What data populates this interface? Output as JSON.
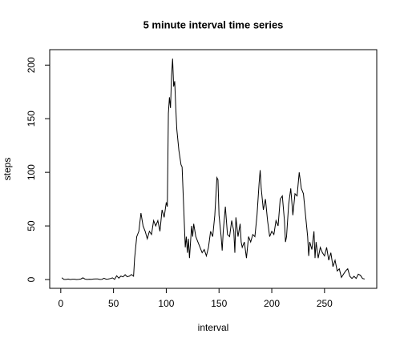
{
  "chart_data": {
    "type": "line",
    "title": "5 minute interval time series",
    "x_label": "interval",
    "y_label": "steps",
    "x": [
      1,
      3,
      5,
      7,
      9,
      11,
      13,
      15,
      17,
      19,
      21,
      23,
      25,
      27,
      29,
      31,
      33,
      35,
      37,
      39,
      41,
      43,
      45,
      47,
      49,
      51,
      53,
      55,
      57,
      59,
      61,
      63,
      65,
      67,
      69,
      70,
      72,
      74,
      76,
      78,
      80,
      82,
      84,
      86,
      88,
      90,
      92,
      94,
      96,
      98,
      100,
      101,
      102,
      103,
      104,
      105,
      106,
      107,
      108,
      109,
      110,
      112,
      114,
      115,
      116,
      118,
      119,
      120,
      121,
      122,
      123,
      124,
      125,
      126,
      128,
      130,
      132,
      134,
      136,
      138,
      140,
      142,
      144,
      146,
      148,
      149,
      150,
      152,
      153,
      154,
      156,
      158,
      160,
      162,
      164,
      165,
      166,
      168,
      170,
      171,
      172,
      174,
      176,
      177,
      178,
      180,
      182,
      184,
      186,
      188,
      189,
      190,
      192,
      194,
      196,
      198,
      200,
      202,
      204,
      206,
      208,
      210,
      212,
      213,
      214,
      216,
      218,
      220,
      222,
      224,
      226,
      228,
      230,
      232,
      234,
      235,
      236,
      238,
      240,
      241,
      242,
      244,
      246,
      248,
      250,
      252,
      254,
      256,
      258,
      260,
      262,
      264,
      266,
      268,
      270,
      272,
      274,
      276,
      278,
      280,
      282,
      284,
      286,
      288
    ],
    "series": [
      {
        "name": "steps",
        "color": "#000000",
        "values": [
          1.7,
          0.1,
          0.1,
          0.5,
          0,
          0.3,
          0.3,
          0,
          0.2,
          0.5,
          1.6,
          0.4,
          0.1,
          0.3,
          0.2,
          0.5,
          0.6,
          0.6,
          0.1,
          0.2,
          1.2,
          0.3,
          0.5,
          0.9,
          1.6,
          0.2,
          3.5,
          1.3,
          3.2,
          2.5,
          4.5,
          2.6,
          3.2,
          4.7,
          3.1,
          20,
          40,
          45,
          62,
          50,
          45,
          38,
          45,
          42,
          55,
          50,
          55,
          45,
          65,
          58,
          72,
          68,
          155,
          170,
          160,
          190,
          206,
          180,
          185,
          160,
          140,
          120,
          107,
          105,
          80,
          30,
          40,
          25,
          38,
          20,
          35,
          50,
          40,
          52,
          40,
          35,
          30,
          25,
          28,
          22,
          30,
          45,
          40,
          60,
          95,
          93,
          60,
          40,
          27,
          45,
          68,
          42,
          40,
          55,
          45,
          25,
          58,
          40,
          52,
          35,
          30,
          35,
          20,
          30,
          40,
          35,
          42,
          40,
          60,
          90,
          102,
          85,
          65,
          75,
          55,
          40,
          45,
          42,
          55,
          50,
          75,
          78,
          55,
          35,
          40,
          70,
          85,
          60,
          80,
          78,
          100,
          85,
          80,
          60,
          40,
          22,
          35,
          28,
          45,
          20,
          35,
          20,
          30,
          25,
          22,
          30,
          18,
          25,
          12,
          18,
          8,
          10,
          2,
          5,
          8,
          10,
          3,
          1,
          3,
          1,
          5,
          4,
          1,
          0.5
        ]
      }
    ],
    "xlim": [
      -10.5,
      299.5
    ],
    "ylim": [
      -8.2,
      214.4
    ],
    "xticks": [
      0,
      50,
      100,
      150,
      200,
      250
    ],
    "yticks": [
      0,
      50,
      100,
      150,
      200
    ]
  }
}
